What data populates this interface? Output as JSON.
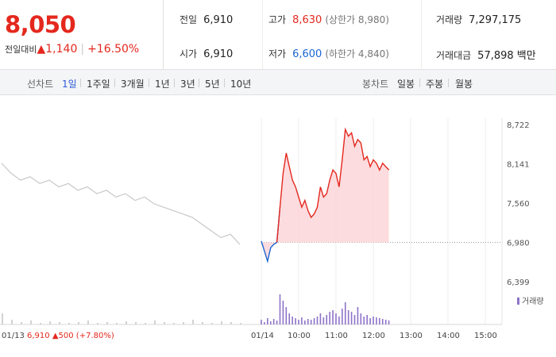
{
  "quote": {
    "price": "8,050",
    "change_label": "전일대비",
    "change_arrow": "▲",
    "change_value": "1,140",
    "change_pct": "+16.50%"
  },
  "stats": {
    "prev_label": "전일",
    "prev_value": "6,910",
    "high_label": "고가",
    "high_value": "8,630",
    "upper_limit": "(상한가 8,980)",
    "volume_label": "거래량",
    "volume_value": "7,297,175",
    "open_label": "시가",
    "open_value": "6,910",
    "low_label": "저가",
    "low_value": "6,600",
    "lower_limit": "(하한가 4,840)",
    "amount_label": "거래대금",
    "amount_value": "57,898 백만"
  },
  "tabs": {
    "line_label": "선차트",
    "line_periods": [
      "1일",
      "1주일",
      "3개월",
      "1년",
      "3년",
      "5년",
      "10년"
    ],
    "active_line": "1일",
    "candle_label": "봉차트",
    "candle_periods": [
      "일봉",
      "주봉",
      "월봉"
    ]
  },
  "colors": {
    "up": "#e4281e",
    "down": "#1a66d4",
    "active_tab": "#2a5bd7",
    "volume": "#8e72c8"
  },
  "chart_data": {
    "type": "line",
    "y_ticks": [
      "8,722",
      "8,141",
      "7,560",
      "6,980",
      "6,399"
    ],
    "ylim": [
      6399,
      8722
    ],
    "x_ticks": [
      "01/14",
      "10:00",
      "11:00",
      "12:00",
      "13:00",
      "14:00",
      "15:00"
    ],
    "prev_day_label": "01/13",
    "prev_day_close": "6,910",
    "prev_day_change": "▲500",
    "prev_day_pct": "(+7.80%)",
    "reference_line": 6980,
    "volume_legend": "거래량",
    "today_series": {
      "name": "",
      "x": [
        "09:00",
        "09:05",
        "09:10",
        "09:15",
        "09:20",
        "09:25",
        "09:30",
        "09:35",
        "09:40",
        "09:45",
        "09:50",
        "09:55",
        "10:00",
        "10:05",
        "10:10",
        "10:15",
        "10:20",
        "10:25",
        "10:30",
        "10:35",
        "10:40",
        "10:45",
        "10:50",
        "10:55",
        "11:00",
        "11:05",
        "11:10",
        "11:15",
        "11:20",
        "11:25",
        "11:30",
        "11:35",
        "11:40",
        "11:45",
        "11:50",
        "11:55",
        "12:00",
        "12:05",
        "12:10",
        "12:15",
        "12:20",
        "12:25"
      ],
      "values": [
        7000,
        6850,
        6700,
        6900,
        6950,
        6980,
        7500,
        8000,
        8300,
        8100,
        7900,
        7800,
        7650,
        7500,
        7600,
        7450,
        7350,
        7400,
        7500,
        7800,
        7650,
        7700,
        7900,
        8050,
        8000,
        7800,
        8200,
        8650,
        8550,
        8600,
        8400,
        8500,
        8450,
        8200,
        8250,
        8100,
        8200,
        8150,
        8050,
        8150,
        8100,
        8050
      ]
    }
  }
}
